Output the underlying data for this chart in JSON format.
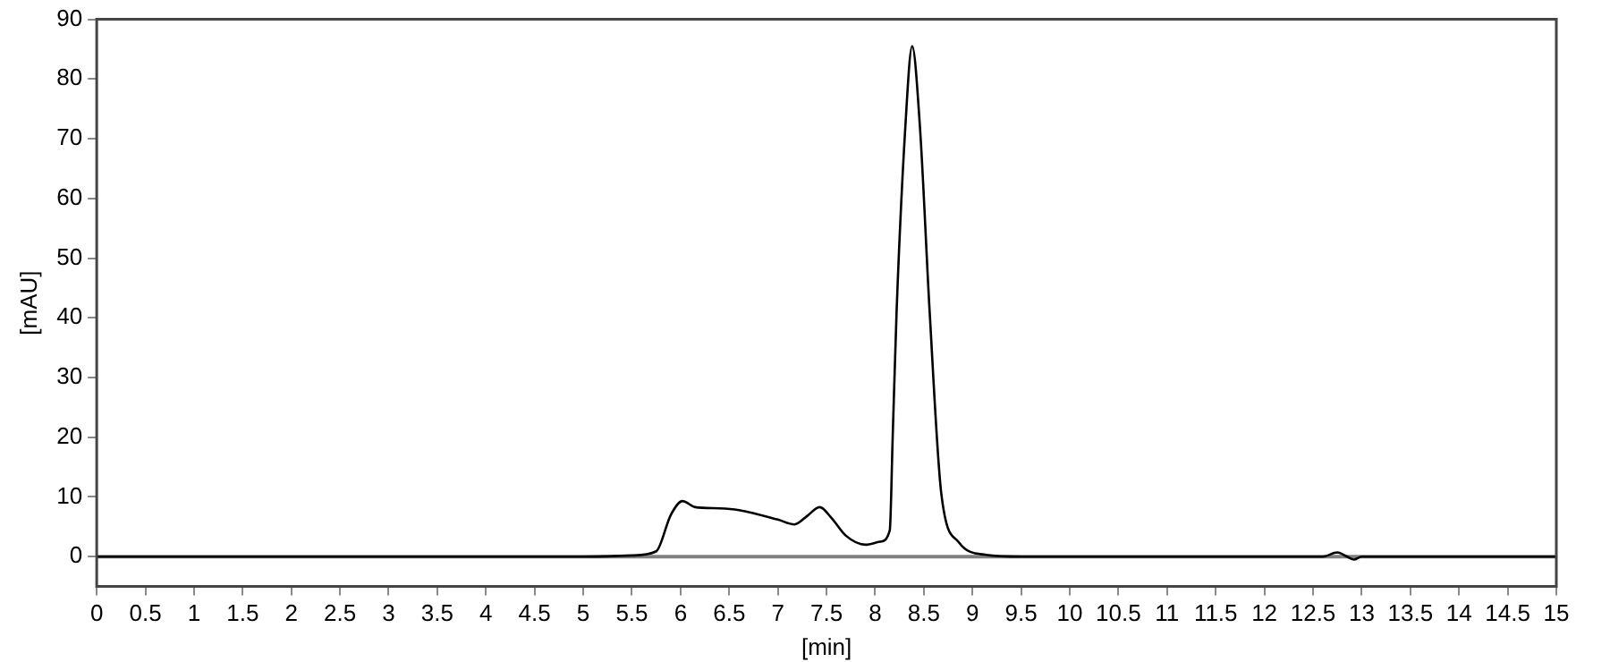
{
  "chart_data": {
    "type": "line",
    "xlabel": "[min]",
    "ylabel": "[mAU]",
    "x": [
      0,
      5.0,
      5.5,
      5.75,
      5.9,
      6.02,
      6.15,
      6.4,
      6.6,
      7.0,
      7.17,
      7.3,
      7.43,
      7.55,
      7.7,
      7.9,
      8.05,
      8.15,
      8.18,
      8.22,
      8.31,
      8.38,
      8.46,
      8.56,
      8.68,
      8.86,
      9.14,
      9.5,
      12.6,
      12.75,
      12.85,
      12.92,
      13.0,
      15
    ],
    "series": [
      {
        "color": "#000000",
        "values": [
          0,
          0,
          0.2,
          0.9,
          7,
          9.3,
          8.3,
          8.1,
          7.8,
          6.2,
          5.4,
          6.8,
          8.3,
          6.5,
          3.5,
          2.0,
          2.5,
          4.4,
          20,
          41,
          72,
          85.5,
          72,
          41,
          10.5,
          2.4,
          0.3,
          0,
          0,
          0.7,
          0,
          -0.5,
          0,
          0
        ]
      }
    ],
    "xlim": [
      0,
      15
    ],
    "xticks": [
      0,
      0.5,
      1,
      1.5,
      2,
      2.5,
      3,
      3.5,
      4,
      4.5,
      5,
      5.5,
      6,
      6.5,
      7,
      7.5,
      8,
      8.5,
      9,
      9.5,
      10,
      10.5,
      11,
      11.5,
      12,
      12.5,
      13,
      13.5,
      14,
      14.5,
      15
    ],
    "ylim": [
      -5,
      90
    ],
    "yticks": [
      0,
      10,
      20,
      30,
      40,
      50,
      60,
      70,
      80,
      90
    ],
    "ref_lines": [
      {
        "axis": "y",
        "value": 0,
        "color": "#808080"
      }
    ],
    "grid": false,
    "legend": false,
    "marker": "none",
    "line_style": "solid"
  }
}
